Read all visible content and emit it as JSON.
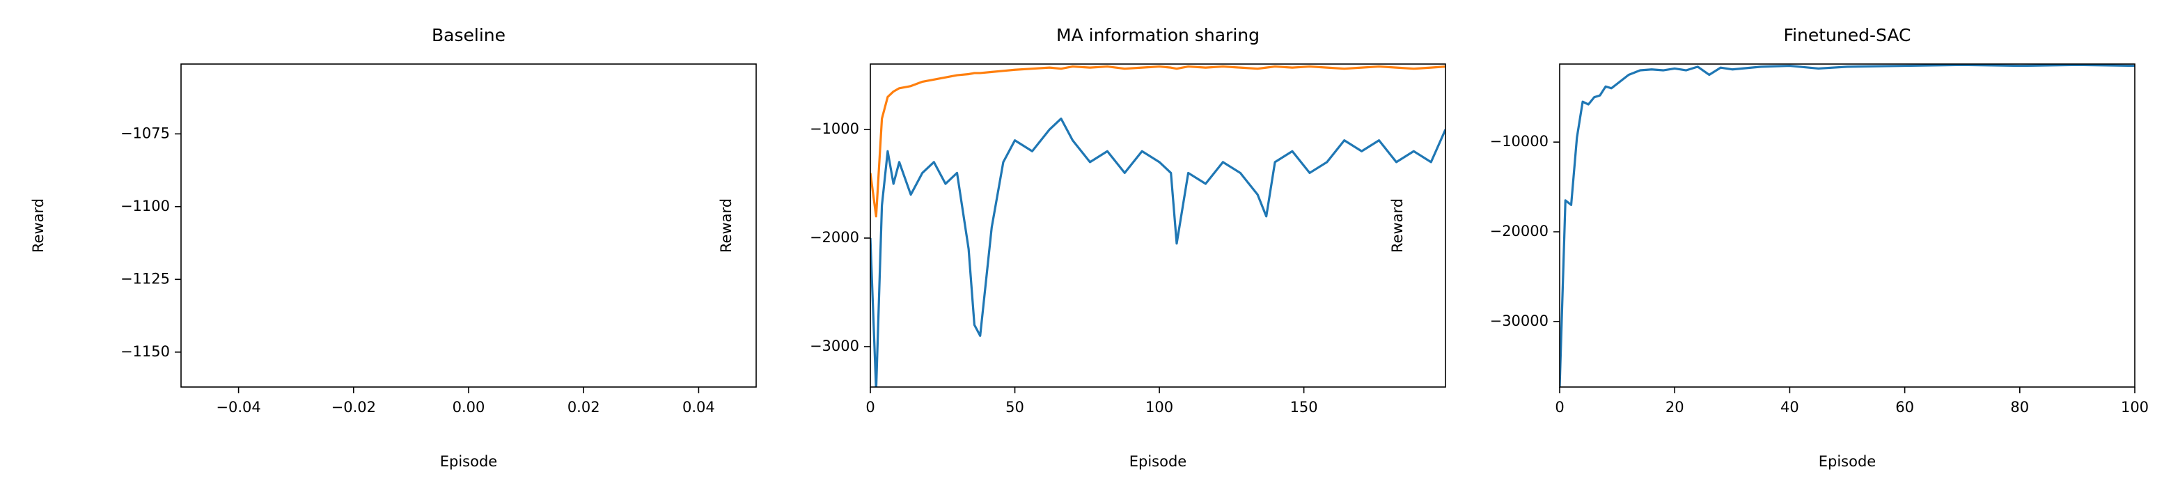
{
  "chart_data": [
    {
      "type": "line",
      "title": "Baseline",
      "x_label": "Episode",
      "y_label": "Reward",
      "xlim": [
        -0.05,
        0.05
      ],
      "xticks": [
        {
          "value": -0.04,
          "label": "−0.04"
        },
        {
          "value": -0.02,
          "label": "−0.02"
        },
        {
          "value": 0,
          "label": "0.00"
        },
        {
          "value": 0.02,
          "label": "0.02"
        },
        {
          "value": 0.04,
          "label": "0.04"
        }
      ],
      "ylim": [
        -1162,
        -1051
      ],
      "yticks": [
        {
          "value": -1150,
          "label": "−1150"
        },
        {
          "value": -1125,
          "label": "−1125"
        },
        {
          "value": -1100,
          "label": "−1100"
        },
        {
          "value": -1075,
          "label": "−1075"
        }
      ]
    },
    {
      "type": "line",
      "title": "MA information sharing",
      "x_label": "Episode",
      "y_label": "Reward",
      "xlim": [
        0,
        199
      ],
      "xticks": [
        0,
        50,
        100,
        150
      ],
      "ylim": [
        -3372,
        -397
      ],
      "yticks": [
        {
          "value": -3000,
          "label": "−3000"
        },
        {
          "value": -2000,
          "label": "−2000"
        },
        {
          "value": -1000,
          "label": "−1000"
        }
      ],
      "x": [
        0,
        2,
        4,
        6,
        8,
        10,
        14,
        18,
        22,
        26,
        30,
        34,
        36,
        38,
        42,
        46,
        50,
        56,
        62,
        66,
        70,
        76,
        82,
        88,
        94,
        100,
        104,
        106,
        110,
        116,
        122,
        128,
        134,
        137,
        140,
        146,
        152,
        158,
        164,
        170,
        176,
        182,
        188,
        194,
        199
      ],
      "series": [
        {
          "color": "#1f77b4",
          "values": [
            -2000,
            -3400,
            -1700,
            -1200,
            -1500,
            -1300,
            -1600,
            -1400,
            -1300,
            -1500,
            -1400,
            -2100,
            -2800,
            -2900,
            -1900,
            -1300,
            -1100,
            -1200,
            -1000,
            -900,
            -1100,
            -1300,
            -1200,
            -1400,
            -1200,
            -1300,
            -1400,
            -2050,
            -1400,
            -1500,
            -1300,
            -1400,
            -1600,
            -1800,
            -1300,
            -1200,
            -1400,
            -1300,
            -1100,
            -1200,
            -1100,
            -1300,
            -1200,
            -1300,
            -1000
          ]
        },
        {
          "color": "#ff7f0e",
          "values": [
            -1400,
            -1800,
            -900,
            -700,
            -650,
            -620,
            -600,
            -560,
            -540,
            -520,
            -500,
            -490,
            -480,
            -480,
            -470,
            -460,
            -450,
            -440,
            -430,
            -440,
            -420,
            -430,
            -420,
            -440,
            -430,
            -420,
            -430,
            -440,
            -420,
            -430,
            -420,
            -430,
            -440,
            -430,
            -420,
            -430,
            -420,
            -430,
            -440,
            -430,
            -420,
            -430,
            -440,
            -430,
            -420
          ]
        }
      ]
    },
    {
      "type": "line",
      "title": "Finetuned-SAC",
      "x_label": "Episode",
      "y_label": "Reward",
      "xlim": [
        0,
        100
      ],
      "xticks": [
        0,
        20,
        40,
        60,
        80,
        100
      ],
      "ylim": [
        -37300,
        -1300
      ],
      "yticks": [
        {
          "value": -30000,
          "label": "−30000"
        },
        {
          "value": -20000,
          "label": "−20000"
        },
        {
          "value": -10000,
          "label": "−10000"
        }
      ],
      "x": [
        0,
        1,
        2,
        3,
        4,
        5,
        6,
        7,
        8,
        9,
        10,
        12,
        14,
        16,
        18,
        20,
        22,
        24,
        26,
        28,
        30,
        35,
        40,
        45,
        50,
        60,
        70,
        80,
        90,
        100
      ],
      "series": [
        {
          "color": "#1f77b4",
          "values": [
            -37300,
            -16500,
            -17000,
            -9500,
            -5500,
            -5800,
            -5000,
            -4800,
            -3800,
            -4000,
            -3500,
            -2500,
            -2000,
            -1900,
            -2000,
            -1800,
            -2000,
            -1600,
            -2500,
            -1700,
            -1900,
            -1600,
            -1500,
            -1800,
            -1600,
            -1500,
            -1400,
            -1500,
            -1400,
            -1500
          ]
        }
      ]
    }
  ]
}
